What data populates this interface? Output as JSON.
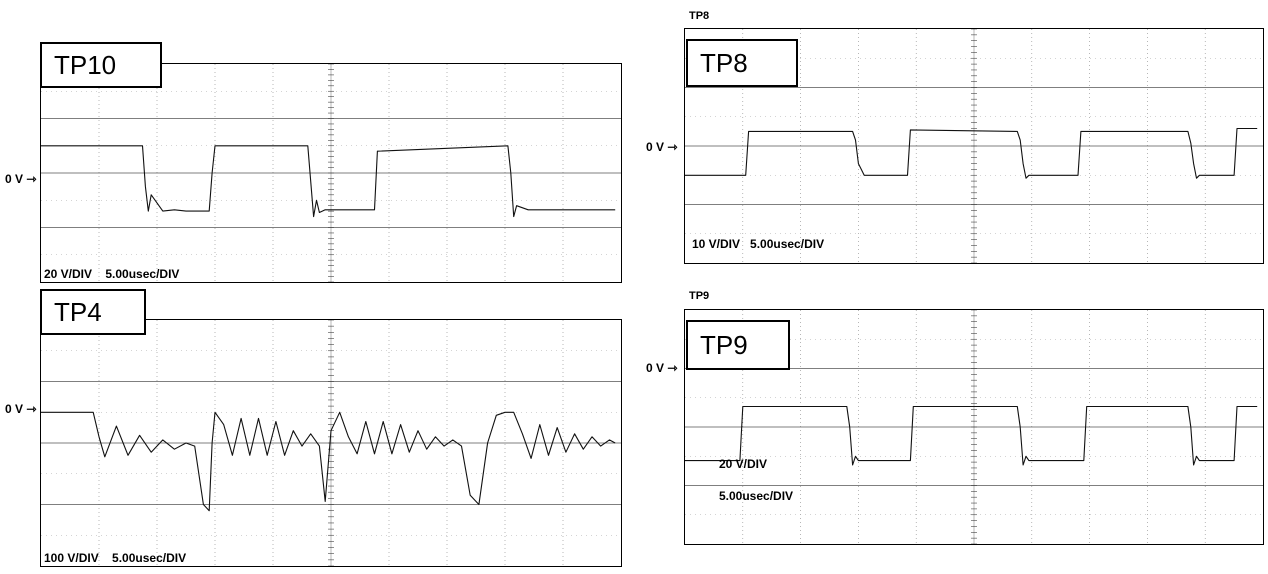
{
  "panels": [
    {
      "id": "tp10",
      "label": "TP10",
      "scale_text": "20 V/DIV    5.00usec/DIV",
      "zero_label": "0 V",
      "top_title": ""
    },
    {
      "id": "tp4",
      "label": "TP4",
      "scale_text": "100 V/DIV    5.00usec/DIV",
      "zero_label": "0 V",
      "top_title": ""
    },
    {
      "id": "tp8",
      "label": "TP8",
      "scale_text": "10 V/DIV   5.00usec/DIV",
      "zero_label": "0 V",
      "top_title": "TP8"
    },
    {
      "id": "tp9",
      "label": "TP9",
      "scale_text": "20 V/DIV",
      "scale_text_2": "5.00usec/DIV",
      "zero_label": "0 V",
      "top_title": "TP9"
    }
  ],
  "chart_data": [
    {
      "type": "line",
      "title": "TP10",
      "volts_per_div": 20,
      "time_per_div_us": 5,
      "x_range_div": [
        0,
        10
      ],
      "y_range_div": [
        -4,
        4
      ],
      "grid": true,
      "series": [
        {
          "x": [
            0,
            1.75,
            1.8,
            1.85,
            1.9,
            2.1,
            2.3,
            2.5,
            2.9,
            2.95,
            3.0,
            4.6,
            4.65,
            4.7,
            4.75,
            4.8,
            4.9,
            5.0,
            5.75,
            5.8,
            8.05,
            8.1,
            8.15,
            8.2,
            8.4,
            8.6,
            9.9
          ],
          "y": [
            1.0,
            1.0,
            -0.5,
            -1.4,
            -0.8,
            -1.4,
            -1.35,
            -1.4,
            -1.4,
            0.0,
            1.0,
            1.0,
            -0.3,
            -1.6,
            -1.0,
            -1.45,
            -1.35,
            -1.35,
            -1.35,
            0.8,
            1.0,
            0.0,
            -1.6,
            -1.2,
            -1.35,
            -1.35,
            -1.35
          ]
        }
      ]
    },
    {
      "type": "line",
      "title": "TP4",
      "volts_per_div": 100,
      "time_per_div_us": 5,
      "x_range_div": [
        0,
        10
      ],
      "y_range_div": [
        -4,
        4
      ],
      "grid": true,
      "series": [
        {
          "x": [
            0,
            0.9,
            1.0,
            1.1,
            1.3,
            1.5,
            1.7,
            1.9,
            2.1,
            2.3,
            2.5,
            2.65,
            2.8,
            2.9,
            2.95,
            3.0,
            3.15,
            3.3,
            3.45,
            3.6,
            3.75,
            3.9,
            4.05,
            4.2,
            4.35,
            4.5,
            4.65,
            4.8,
            4.9,
            5.0,
            5.15,
            5.3,
            5.45,
            5.6,
            5.75,
            5.9,
            6.05,
            6.2,
            6.35,
            6.5,
            6.65,
            6.8,
            6.95,
            7.1,
            7.25,
            7.4,
            7.55,
            7.7,
            7.85,
            8.0,
            8.15,
            8.3,
            8.45,
            8.6,
            8.75,
            8.9,
            9.05,
            9.2,
            9.35,
            9.5,
            9.65,
            9.8,
            9.9
          ],
          "y": [
            1.0,
            1.0,
            0.2,
            -0.45,
            0.55,
            -0.4,
            0.25,
            -0.3,
            0.1,
            -0.2,
            0.0,
            -0.1,
            -2.0,
            -2.2,
            0.0,
            1.0,
            0.6,
            -0.4,
            0.8,
            -0.4,
            0.8,
            -0.4,
            0.7,
            -0.4,
            0.4,
            -0.1,
            0.3,
            -0.1,
            -1.9,
            0.4,
            1.0,
            0.2,
            -0.35,
            0.7,
            -0.35,
            0.7,
            -0.35,
            0.6,
            -0.3,
            0.4,
            -0.2,
            0.2,
            -0.1,
            0.1,
            -0.1,
            -1.7,
            -2.0,
            0.0,
            0.9,
            1.0,
            1.0,
            0.3,
            -0.5,
            0.6,
            -0.4,
            0.5,
            -0.3,
            0.3,
            -0.2,
            0.2,
            -0.1,
            0.1,
            0.0
          ]
        }
      ]
    },
    {
      "type": "line",
      "title": "TP8",
      "volts_per_div": 10,
      "time_per_div_us": 5,
      "x_range_div": [
        0,
        10
      ],
      "y_range_div": [
        -4,
        4
      ],
      "grid": true,
      "series": [
        {
          "x": [
            0,
            1.05,
            1.1,
            2.9,
            2.95,
            3.0,
            3.05,
            3.1,
            3.3,
            3.85,
            3.9,
            5.75,
            5.8,
            5.85,
            5.9,
            5.95,
            6.2,
            6.8,
            6.85,
            8.7,
            8.75,
            8.8,
            8.85,
            8.9,
            9.2,
            9.5,
            9.55,
            9.9
          ],
          "y": [
            -1.0,
            -1.0,
            0.5,
            0.5,
            0.2,
            -0.6,
            -0.8,
            -1.0,
            -1.0,
            -1.0,
            0.55,
            0.5,
            0.2,
            -0.6,
            -1.1,
            -1.0,
            -1.0,
            -1.0,
            0.5,
            0.5,
            0.1,
            -0.6,
            -1.1,
            -1.0,
            -1.0,
            -1.0,
            0.6,
            0.6
          ]
        }
      ]
    },
    {
      "type": "line",
      "title": "TP9",
      "volts_per_div": 20,
      "time_per_div_us": 5,
      "x_range_div": [
        0,
        10
      ],
      "y_range_div": [
        -4,
        4
      ],
      "grid": true,
      "series": [
        {
          "x": [
            0,
            0.95,
            1.0,
            2.8,
            2.85,
            2.9,
            2.95,
            3.0,
            3.3,
            3.9,
            3.95,
            5.75,
            5.8,
            5.85,
            5.9,
            5.95,
            6.2,
            6.9,
            6.95,
            8.7,
            8.75,
            8.8,
            8.85,
            8.9,
            9.2,
            9.5,
            9.55,
            9.9
          ],
          "y": [
            -1.15,
            -1.15,
            0.7,
            0.7,
            0.0,
            -1.3,
            -1.0,
            -1.15,
            -1.15,
            -1.15,
            0.7,
            0.7,
            0.0,
            -1.3,
            -1.0,
            -1.15,
            -1.15,
            -1.15,
            0.7,
            0.7,
            0.0,
            -1.3,
            -1.0,
            -1.15,
            -1.15,
            -1.15,
            0.7,
            0.7
          ]
        }
      ]
    }
  ]
}
